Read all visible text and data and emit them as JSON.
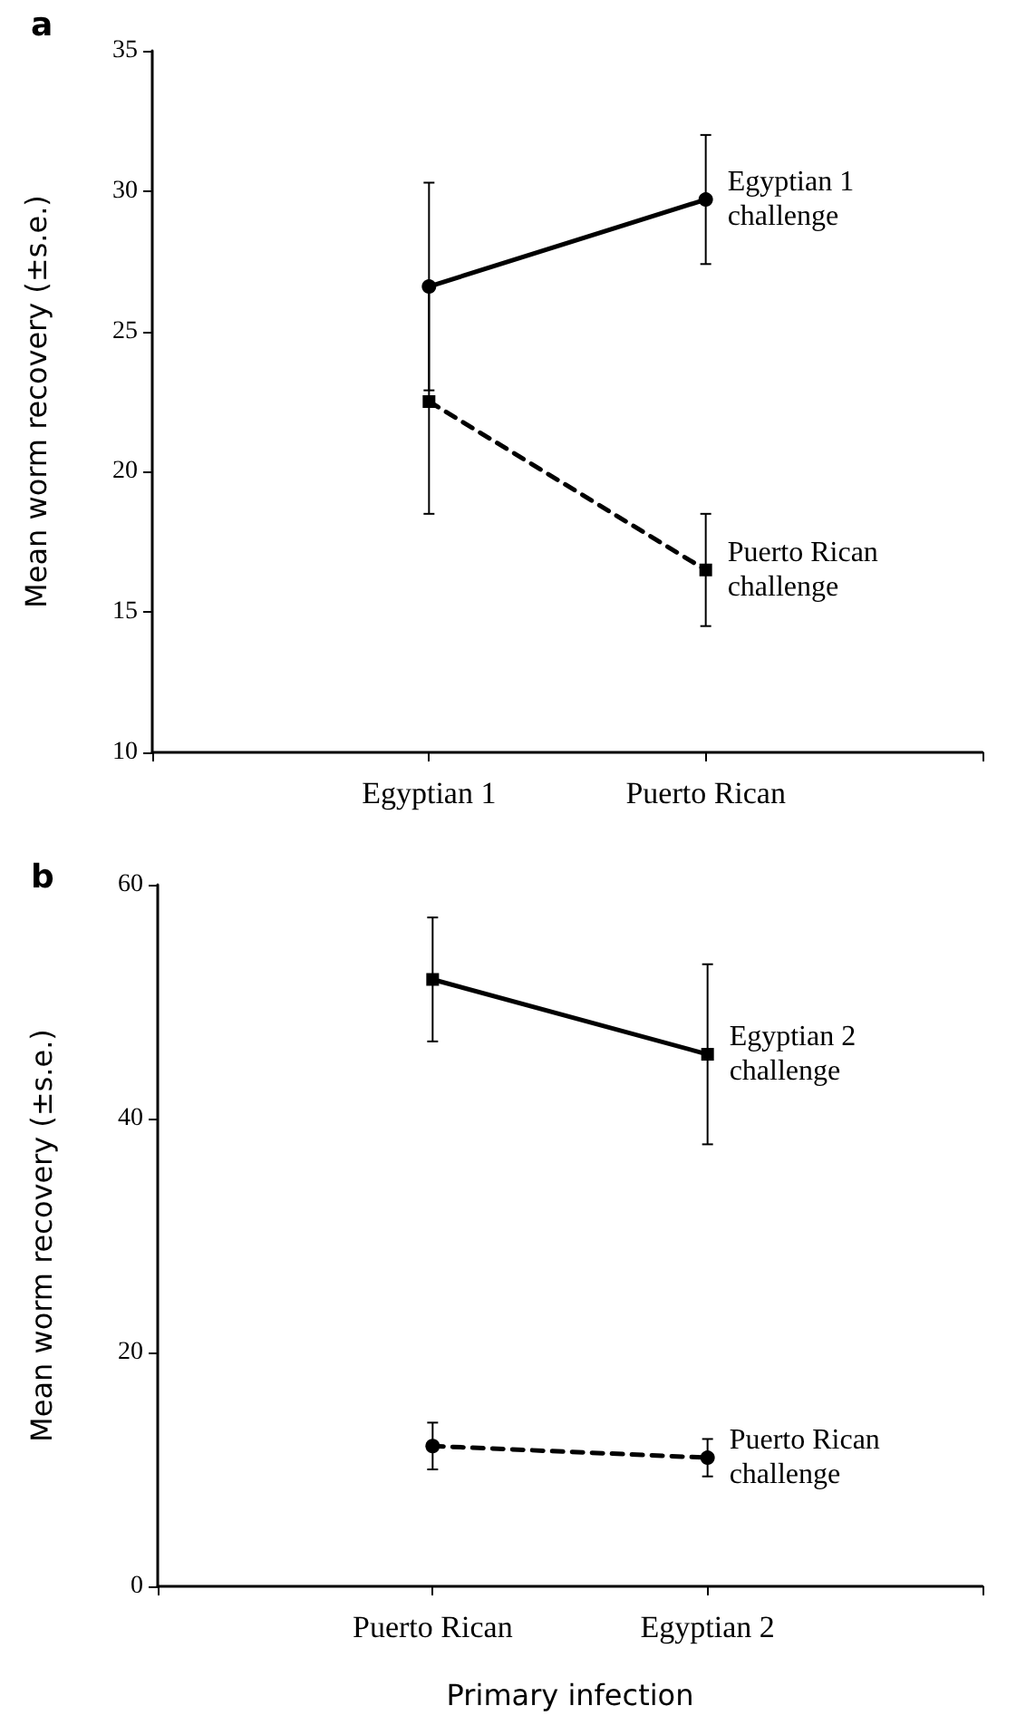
{
  "chart_data": [
    {
      "type": "line",
      "title": "a",
      "ylabel": "Mean worm recovery (±s.e.)",
      "categories": [
        null,
        "Egyptian 1",
        "Puerto Rican",
        null
      ],
      "ylim": [
        10,
        35
      ],
      "yticks": [
        10,
        15,
        20,
        25,
        30,
        35
      ],
      "grid": false,
      "legend": false,
      "series": [
        {
          "name": "Egyptian 1 challenge",
          "color": "#000000",
          "values": [
            null,
            26.6,
            29.7,
            null
          ],
          "errors": [
            null,
            3.7,
            2.3,
            null
          ],
          "marker": "circle",
          "line_style": "solid"
        },
        {
          "name": "Puerto Rican challenge",
          "color": "#000000",
          "values": [
            null,
            22.5,
            16.5,
            null
          ],
          "errors": [
            null,
            4.0,
            2.0,
            null
          ],
          "marker": "square",
          "line_style": "dashed"
        }
      ]
    },
    {
      "type": "line",
      "title": "b",
      "ylabel": "Mean worm recovery (±s.e.)",
      "xlabel": "Primary infection",
      "categories": [
        null,
        "Puerto Rican",
        "Egyptian 2",
        null
      ],
      "ylim": [
        0,
        60
      ],
      "yticks": [
        0,
        20,
        40,
        60
      ],
      "grid": false,
      "legend": false,
      "series": [
        {
          "name": "Egyptian 2 challenge",
          "color": "#000000",
          "values": [
            null,
            51.9,
            45.5,
            null
          ],
          "errors": [
            null,
            5.3,
            7.7,
            null
          ],
          "marker": "square",
          "line_style": "solid"
        },
        {
          "name": "Puerto Rican challenge",
          "color": "#000000",
          "values": [
            null,
            12.0,
            11.0,
            null
          ],
          "errors": [
            null,
            2.0,
            1.6,
            null
          ],
          "marker": "circle",
          "line_style": "dashed"
        }
      ]
    }
  ]
}
